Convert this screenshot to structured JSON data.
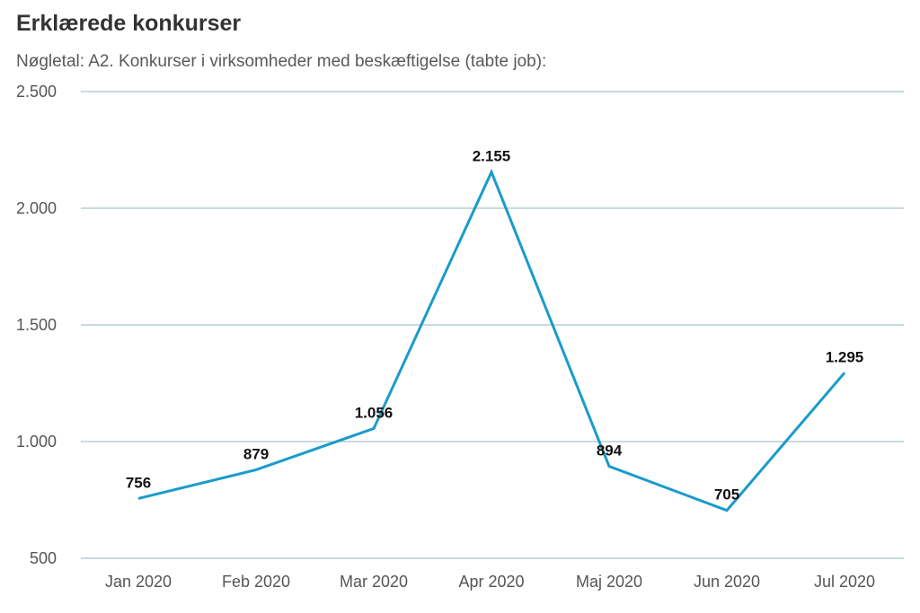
{
  "header": {
    "title": "Erklærede konkurser",
    "subtitle": "Nøgletal: A2. Konkurser i virksomheder med beskæftigelse (tabte job):"
  },
  "colors": {
    "line": "#1a9bcb",
    "grid": "#a9c4cc",
    "text": "#555555"
  },
  "chart_data": {
    "type": "line",
    "title": "Erklærede konkurser",
    "subtitle": "Nøgletal: A2. Konkurser i virksomheder med beskæftigelse (tabte job):",
    "xlabel": "",
    "ylabel": "",
    "categories": [
      "Jan 2020",
      "Feb 2020",
      "Mar 2020",
      "Apr 2020",
      "Maj 2020",
      "Jun 2020",
      "Jul 2020"
    ],
    "series": [
      {
        "values": [
          756,
          879,
          1056,
          2155,
          894,
          705,
          1295
        ],
        "labels": [
          "756",
          "879",
          "1.056",
          "2.155",
          "894",
          "705",
          "1.295"
        ]
      }
    ],
    "ylim": [
      500,
      2500
    ],
    "yticks": [
      500,
      1000,
      1500,
      2000,
      2500
    ],
    "ytick_labels": [
      "500",
      "1.000",
      "1.500",
      "2.000",
      "2.500"
    ],
    "grid": true,
    "legend": "none"
  }
}
